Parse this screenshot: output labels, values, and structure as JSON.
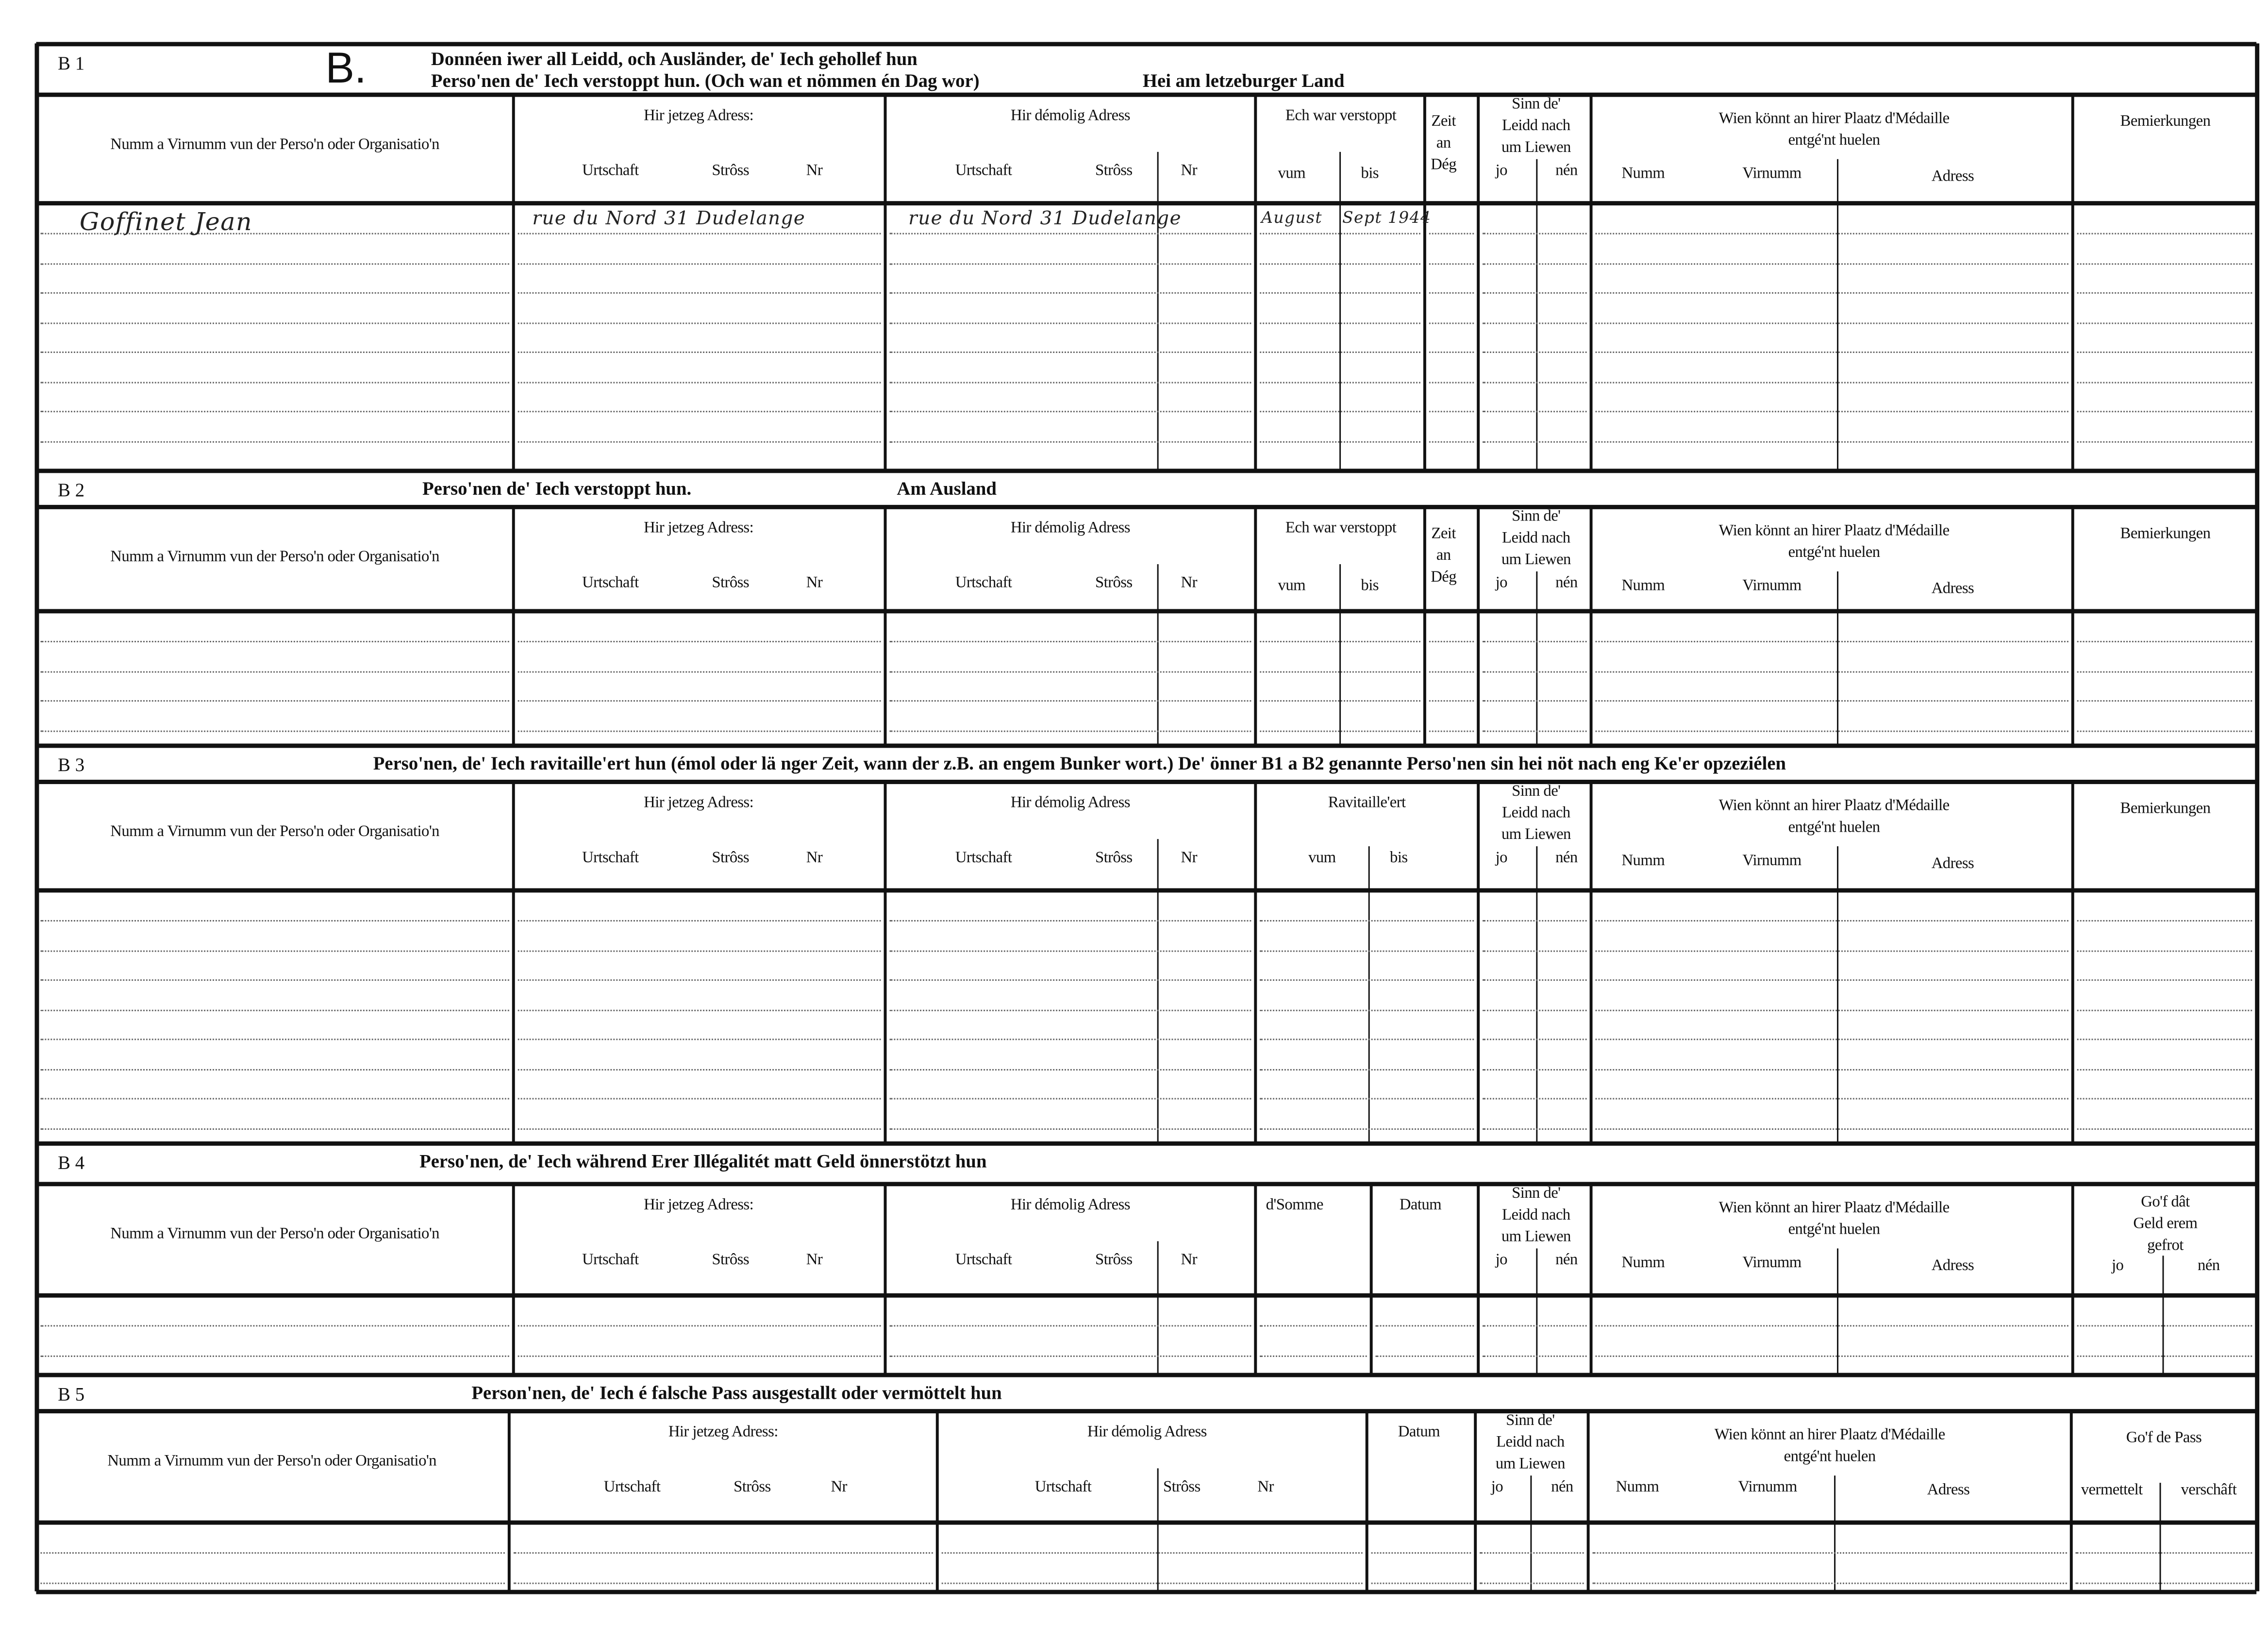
{
  "form_letter": "B.",
  "sections": [
    {
      "code": "B 1",
      "title_lines": [
        "Donnéen iwer all Leidd, och Ausländer, de' Iech gehollef hun",
        "Perso'nen de' Iech verstoppt hun. (Och wan et nömmen én Dag wor)"
      ],
      "region": "Hei am letzeburger Land",
      "headers": {
        "name": "Numm a Virnumm vun der Perso'n oder Organisatio'n",
        "current_address": "Hir jetzeg Adress:",
        "former_address": "Hir démolig Adress",
        "place": "Urtschaft",
        "street": "Strôss",
        "number": "Nr",
        "period": "Ech war verstoppt",
        "from": "vum",
        "to": "bis",
        "days": "Zeit\nan\nDég",
        "alive": "Sinn de'\nLeidd nach\num Liewen",
        "yes": "jo",
        "no": "nén",
        "medal": "Wien könnt an hirer Plaatz d'Médaille\nentgé'nt huelen",
        "surname": "Numm",
        "firstname": "Virnumm",
        "address": "Adress",
        "remarks": "Bemierkungen"
      },
      "entries": [
        {
          "name": "Goffinet Jean",
          "current_address": "rue du Nord 31 Dudelange",
          "former_address": "rue du Nord 31 Dudelange",
          "from": "August",
          "to": "Sept 1944"
        }
      ]
    },
    {
      "code": "B 2",
      "title_lines": [
        "Perso'nen de' Iech verstoppt hun."
      ],
      "region": "Am Ausland",
      "headers": {
        "name": "Numm a Virnumm vun der Perso'n oder Organisatio'n",
        "current_address": "Hir jetzeg Adress:",
        "former_address": "Hir démolig Adress",
        "place": "Urtschaft",
        "street": "Strôss",
        "number": "Nr",
        "period": "Ech war verstoppt",
        "from": "vum",
        "to": "bis",
        "days": "Zeit\nan\nDég",
        "alive": "Sinn de'\nLeidd nach\num Liewen",
        "yes": "jo",
        "no": "nén",
        "medal": "Wien könnt an hirer Plaatz d'Médaille\nentgé'nt huelen",
        "surname": "Numm",
        "firstname": "Virnumm",
        "address": "Adress",
        "remarks": "Bemierkungen"
      },
      "entries": []
    },
    {
      "code": "B 3",
      "title_lines": [
        "Perso'nen, de' Iech ravitaille'ert hun (émol oder lä nger Zeit, wann der z.B. an engem Bunker wort.)  De' önner B1 a B2 genannte Perso'nen sin hei nöt nach eng Ke'er opzeziélen"
      ],
      "headers": {
        "name": "Numm a Virnumm vun der Perso'n oder Organisatio'n",
        "current_address": "Hir jetzeg Adress:",
        "former_address": "Hir démolig Adress",
        "place": "Urtschaft",
        "street": "Strôss",
        "number": "Nr",
        "period": "Ravitaille'ert",
        "from": "vum",
        "to": "bis",
        "alive": "Sinn de'\nLeidd nach\num Liewen",
        "yes": "jo",
        "no": "nén",
        "medal": "Wien könnt an hirer Plaatz d'Médaille\nentgé'nt huelen",
        "surname": "Numm",
        "firstname": "Virnumm",
        "address": "Adress",
        "remarks": "Bemierkungen"
      },
      "entries": []
    },
    {
      "code": "B 4",
      "title_lines": [
        "Perso'nen, de' Iech während Erer Illégalitét matt Geld önnerstötzt hun"
      ],
      "headers": {
        "name": "Numm a Virnumm vun der Perso'n oder Organisatio'n",
        "current_address": "Hir jetzeg Adress:",
        "former_address": "Hir démolig Adress",
        "place": "Urtschaft",
        "street": "Strôss",
        "number": "Nr",
        "amount": "d'Somme",
        "date": "Datum",
        "alive": "Sinn de'\nLeidd nach\num Liewen",
        "yes": "jo",
        "no": "nén",
        "medal": "Wien könnt an hirer Plaatz d'Médaille\nentgé'nt huelen",
        "surname": "Numm",
        "firstname": "Virnumm",
        "address": "Adress",
        "money_back": "Go'f dât\nGeld erem gefrot",
        "money_yes": "jo",
        "money_no": "nén"
      },
      "entries": []
    },
    {
      "code": "B 5",
      "title_lines": [
        "Person'nen, de' Iech é falsche Pass ausgestallt oder vermöttelt hun"
      ],
      "headers": {
        "name": "Numm a Virnumm vun der Perso'n oder Organisatio'n",
        "current_address": "Hir jetzeg Adress:",
        "former_address": "Hir démolig Adress",
        "place": "Urtschaft",
        "street": "Strôss",
        "number": "Nr",
        "date": "Datum",
        "alive": "Sinn de'\nLeidd nach\num Liewen",
        "yes": "jo",
        "no": "nén",
        "medal": "Wien könnt an hirer Plaatz d'Médaille\nentgé'nt huelen",
        "surname": "Numm",
        "firstname": "Virnumm",
        "address": "Adress",
        "pass": "Go'f de Pass",
        "pass_mediated": "vermettelt",
        "pass_provided": "verschâft"
      },
      "entries": []
    }
  ]
}
